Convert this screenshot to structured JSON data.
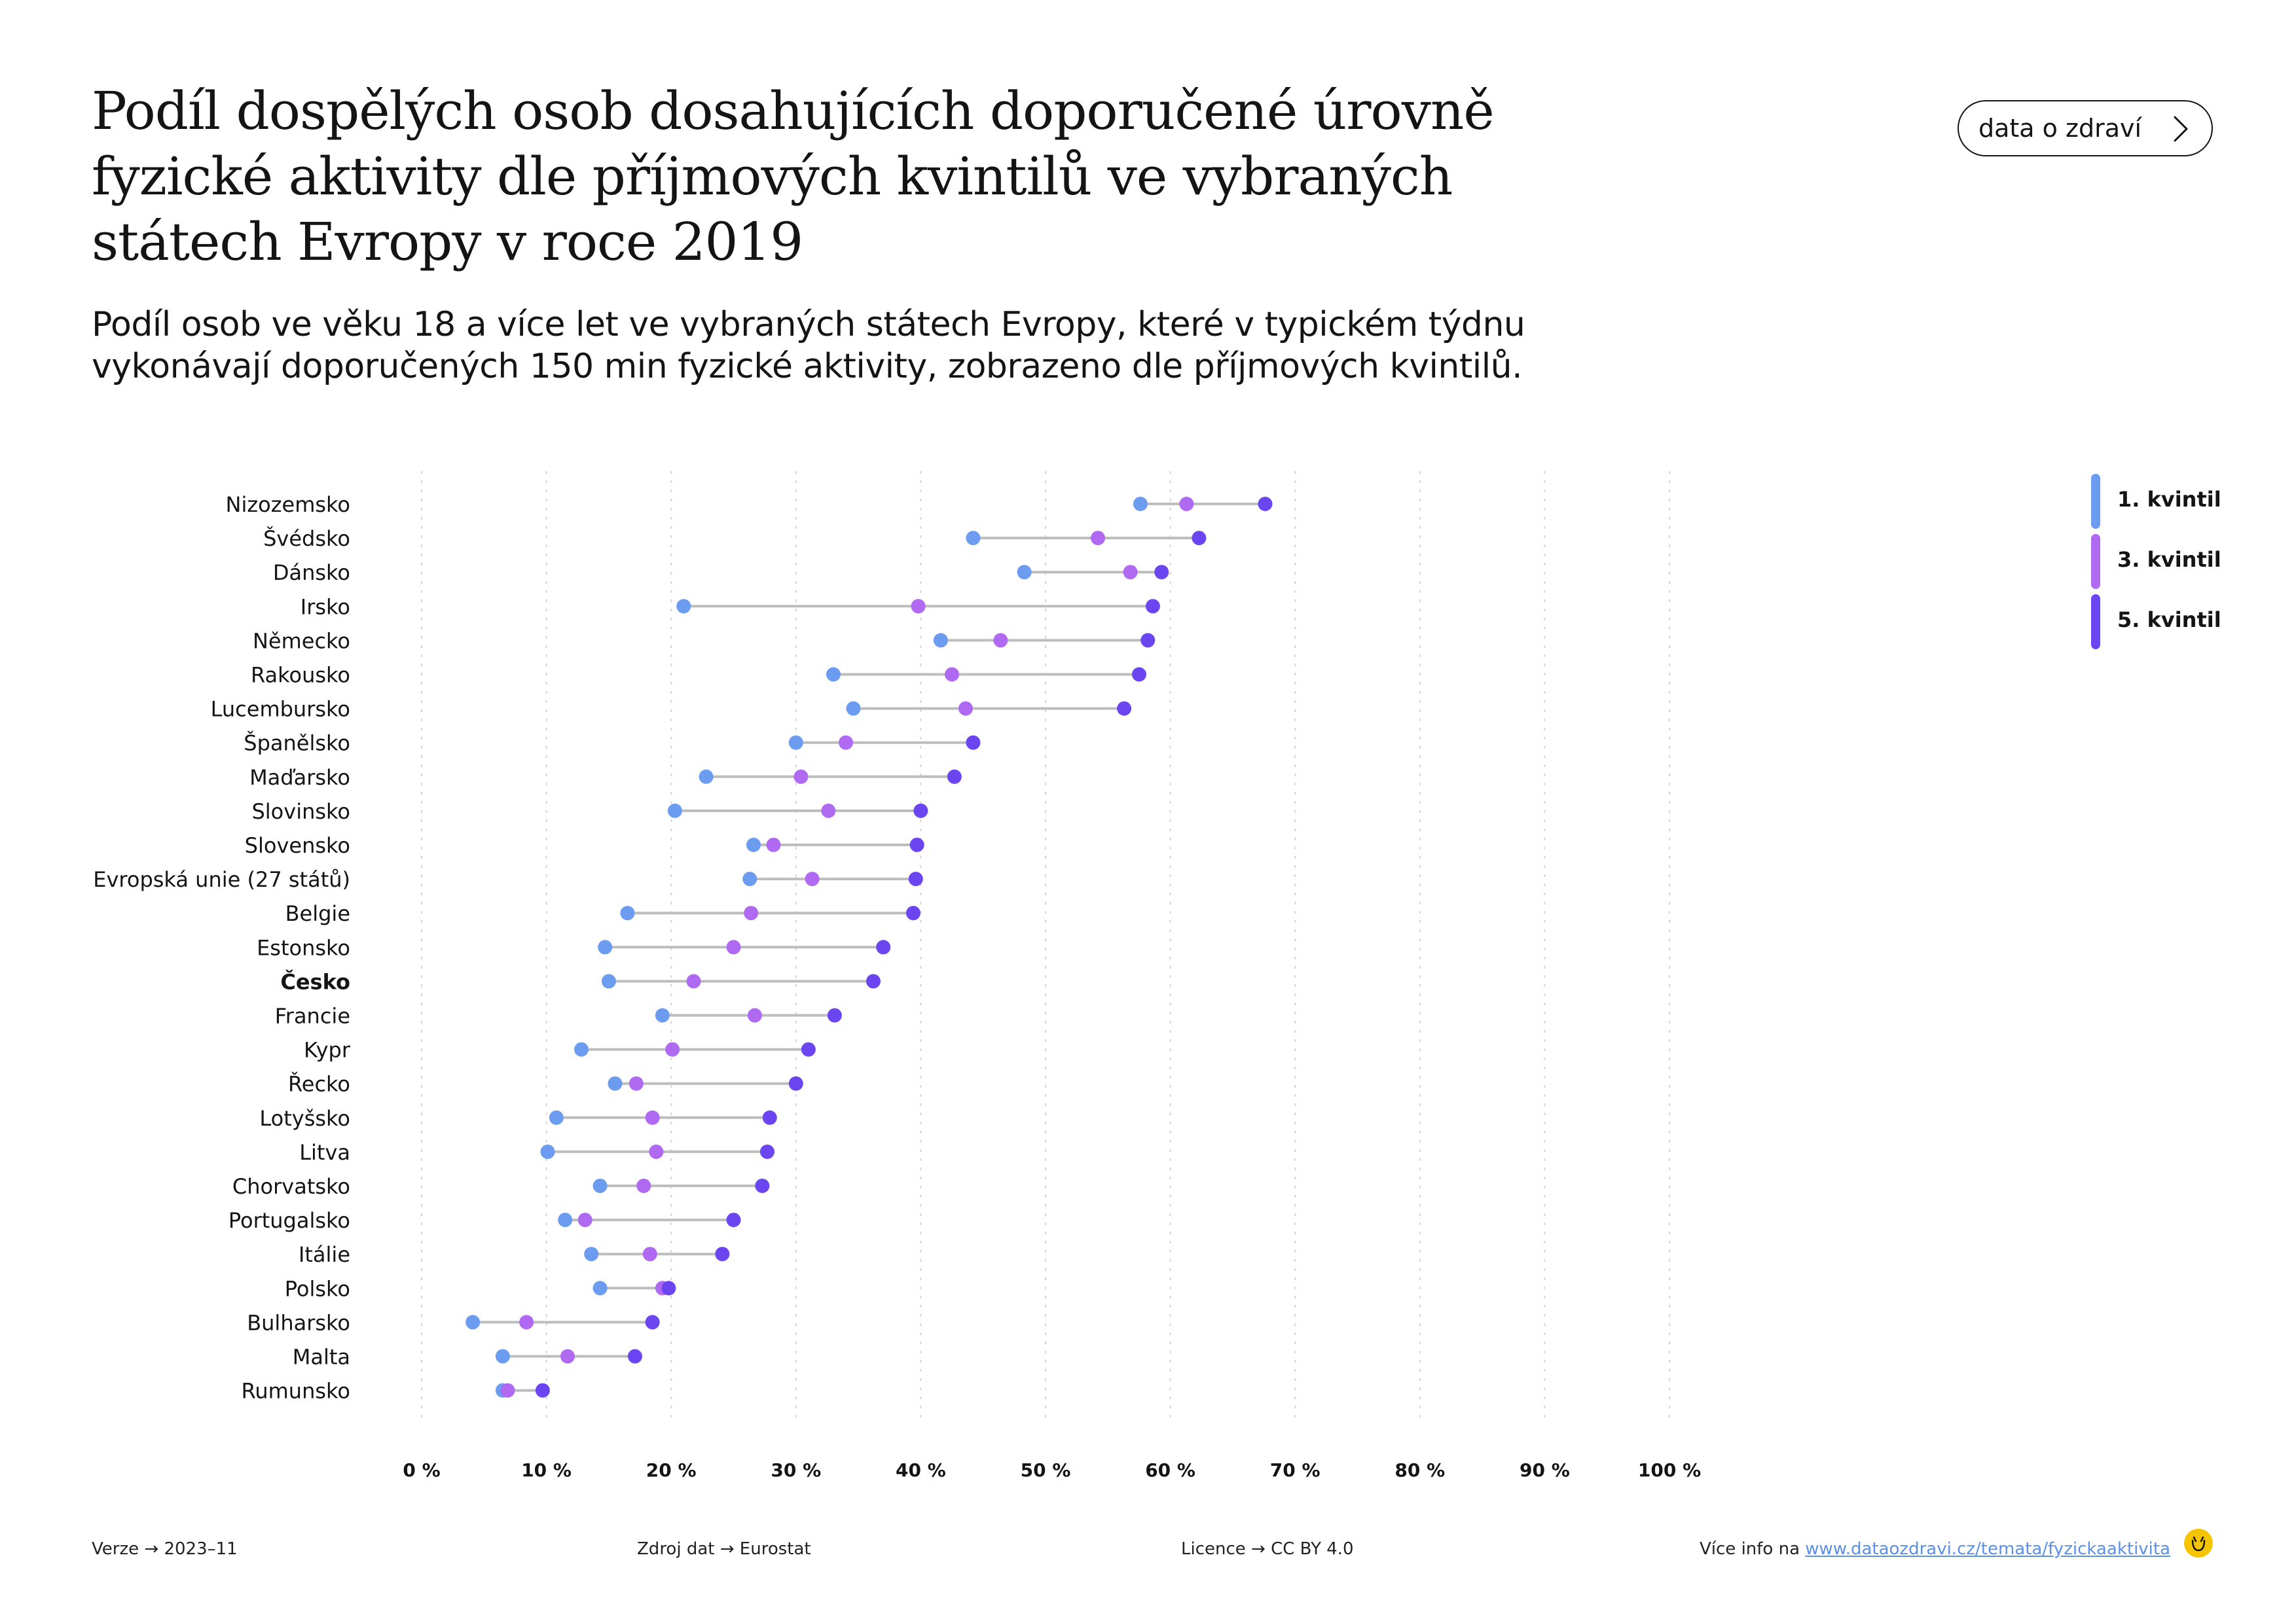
{
  "header": {
    "title": "Podíl dospělých osob dosahujících doporučené úrovně fyzické aktivity dle příjmových kvintilů ve vybraných státech Evropy v roce 2019",
    "subtitle": "Podíl osob ve věku 18 a více let ve vybraných státech Evropy, které v typickém týdnu vykonávají doporučených 150 min fyzické aktivity, zobrazeno dle příjmových kvintilů.",
    "data_button_label": "data o zdraví",
    "data_button_icon": "chevron-right-icon"
  },
  "chart_data": {
    "type": "scatter",
    "style": "dumbbell",
    "title": "",
    "xlabel": "",
    "ylabel": "",
    "xlim": [
      0,
      100
    ],
    "x_ticks": [
      "0 %",
      "10 %",
      "20 %",
      "30 %",
      "40 %",
      "50 %",
      "60 %",
      "70 %",
      "80 %",
      "90 %",
      "100 %"
    ],
    "grid": "vertical dotted",
    "legend_position": "top-right",
    "highlighted_category": "Česko",
    "categories": [
      "Nizozemsko",
      "Švédsko",
      "Dánsko",
      "Irsko",
      "Německo",
      "Rakousko",
      "Lucembursko",
      "Španělsko",
      "Maďarsko",
      "Slovinsko",
      "Slovensko",
      "Evropská unie (27 států)",
      "Belgie",
      "Estonsko",
      "Česko",
      "Francie",
      "Kypr",
      "Řecko",
      "Lotyšsko",
      "Litva",
      "Chorvatsko",
      "Portugalsko",
      "Itálie",
      "Polsko",
      "Bulharsko",
      "Malta",
      "Rumunsko"
    ],
    "series": [
      {
        "name": "1. kvintil",
        "color": "#6b9cf0",
        "values": [
          57.6,
          44.2,
          48.3,
          21.0,
          41.6,
          33.0,
          34.6,
          30.0,
          22.8,
          20.3,
          26.6,
          26.3,
          16.5,
          14.7,
          15.0,
          19.3,
          12.8,
          15.5,
          10.8,
          10.1,
          14.3,
          11.5,
          13.6,
          14.3,
          4.1,
          6.5,
          6.5
        ]
      },
      {
        "name": "3. kvintil",
        "color": "#b06af2",
        "values": [
          61.3,
          54.2,
          56.8,
          39.8,
          46.4,
          42.5,
          43.6,
          34.0,
          30.4,
          32.6,
          28.2,
          31.3,
          26.4,
          25.0,
          21.8,
          26.7,
          20.1,
          17.2,
          18.5,
          18.8,
          17.8,
          13.1,
          18.3,
          19.3,
          8.4,
          11.7,
          6.9
        ]
      },
      {
        "name": "5. kvintil",
        "color": "#6a45f0",
        "values": [
          67.6,
          62.3,
          59.3,
          58.6,
          58.2,
          57.5,
          56.3,
          44.2,
          42.7,
          40.0,
          39.7,
          39.6,
          39.4,
          37.0,
          36.2,
          33.1,
          31.0,
          30.0,
          27.9,
          27.7,
          27.3,
          25.0,
          24.1,
          19.8,
          18.5,
          17.1,
          9.7
        ]
      }
    ]
  },
  "footer": {
    "version_label": "Verze",
    "version_value": "2023–11",
    "source_label": "Zdroj dat",
    "source_value": "Eurostat",
    "license_label": "Licence",
    "license_value": "CC BY 4.0",
    "info_label": "Více info na",
    "info_link": "www.dataozdravi.cz/temata/fyzickaaktivita",
    "arrow": "→",
    "logo_icon": "smiley-logo-icon"
  }
}
